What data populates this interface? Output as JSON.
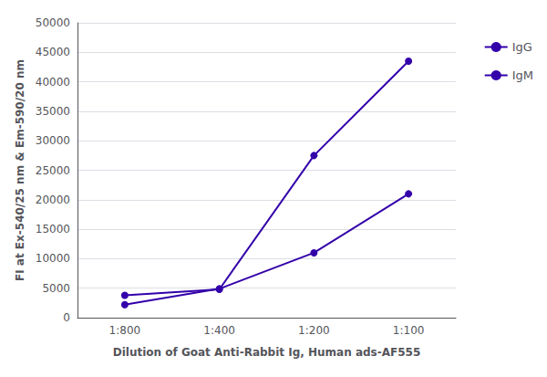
{
  "chart_data": {
    "type": "line",
    "xlabel": "Dilution of Goat Anti-Rabbit Ig, Human ads-AF555",
    "ylabel": "FI at Ex-540/25 nm & Em-590/20 nm",
    "categories": [
      "1:800",
      "1:400",
      "1:200",
      "1:100"
    ],
    "series": [
      {
        "name": "IgG",
        "color": "#3300AA",
        "marker": "circle",
        "values": [
          3800,
          4800,
          27500,
          43500
        ]
      },
      {
        "name": "IgM",
        "color": "#3300AA",
        "marker": "circle",
        "values": [
          2200,
          4900,
          11000,
          21000
        ]
      }
    ],
    "ylim": [
      0,
      50000
    ],
    "yticks": [
      0,
      5000,
      10000,
      15000,
      20000,
      25000,
      30000,
      35000,
      40000,
      45000,
      50000
    ],
    "grid": true,
    "legend": "right"
  }
}
